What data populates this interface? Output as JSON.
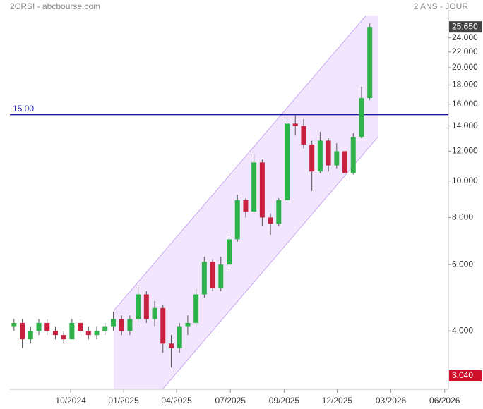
{
  "chart_data": {
    "type": "candlestick",
    "title": "2CRSI - abcbourse.com",
    "subtitle": "2 ANS - JOUR",
    "log_scale": true,
    "up_color": "#2db34a",
    "down_color": "#c8203f",
    "x": [
      1,
      3,
      5,
      7,
      9,
      11,
      13,
      15,
      17,
      19,
      21,
      23,
      25,
      27,
      29,
      31,
      33,
      35,
      37,
      39,
      41,
      43,
      45,
      47,
      49,
      51,
      53,
      55,
      57,
      59,
      61,
      63,
      65,
      67,
      69,
      71,
      73,
      75,
      77,
      79,
      81,
      83,
      85,
      87
    ],
    "open": [
      4.1,
      4.2,
      3.8,
      4.0,
      4.2,
      4.0,
      3.9,
      3.8,
      4.2,
      4.0,
      3.9,
      4.0,
      4.1,
      4.3,
      4.0,
      4.3,
      5.0,
      4.3,
      4.6,
      3.7,
      3.6,
      4.1,
      4.2,
      5.0,
      6.1,
      5.2,
      6.0,
      7.0,
      8.9,
      8.3,
      11.2,
      8.0,
      7.7,
      8.9,
      14.2,
      14.0,
      12.5,
      10.6,
      12.8,
      11.0,
      12.0,
      10.5,
      13.1,
      16.6
    ],
    "high": [
      4.3,
      4.3,
      4.1,
      4.3,
      4.3,
      4.1,
      4.0,
      4.3,
      4.3,
      4.1,
      4.1,
      4.2,
      4.5,
      4.4,
      4.4,
      5.3,
      5.1,
      4.8,
      4.7,
      3.9,
      4.2,
      4.4,
      5.2,
      6.3,
      6.2,
      6.3,
      7.2,
      9.2,
      9.0,
      11.8,
      11.4,
      8.2,
      9.0,
      14.8,
      15.0,
      14.6,
      12.8,
      13.5,
      13.0,
      12.6,
      12.2,
      13.4,
      17.8,
      26.2
    ],
    "low": [
      4.0,
      3.6,
      3.7,
      3.9,
      3.9,
      3.8,
      3.7,
      3.8,
      3.9,
      3.8,
      3.8,
      3.9,
      4.0,
      3.9,
      3.9,
      4.2,
      4.2,
      4.1,
      3.5,
      3.2,
      3.5,
      3.9,
      4.1,
      4.9,
      5.1,
      5.1,
      5.8,
      6.9,
      8.0,
      8.2,
      7.6,
      7.2,
      7.6,
      8.8,
      13.2,
      12.2,
      9.4,
      10.5,
      10.6,
      10.8,
      10.1,
      10.4,
      13.0,
      16.4
    ],
    "close": [
      4.2,
      3.8,
      4.0,
      4.2,
      4.0,
      3.9,
      3.8,
      4.2,
      4.0,
      3.9,
      4.0,
      4.1,
      4.3,
      4.0,
      4.3,
      5.0,
      4.3,
      4.6,
      3.7,
      3.6,
      4.1,
      4.2,
      5.0,
      6.1,
      5.2,
      6.0,
      7.0,
      8.9,
      8.3,
      11.2,
      8.0,
      7.7,
      8.9,
      14.2,
      14.0,
      12.5,
      10.6,
      12.8,
      11.0,
      12.0,
      10.5,
      13.1,
      16.6,
      25.65
    ],
    "xlim": [
      0,
      106
    ],
    "xticks": [
      {
        "value": 14.7,
        "label": "10/2024"
      },
      {
        "value": 27.5,
        "label": "01/2025"
      },
      {
        "value": 40.3,
        "label": "04/2025"
      },
      {
        "value": 53.3,
        "label": "07/2025"
      },
      {
        "value": 66.3,
        "label": "09/2025"
      },
      {
        "value": 79.1,
        "label": "12/2025"
      },
      {
        "value": 92.1,
        "label": "03/2026"
      },
      {
        "value": 105.1,
        "label": "06/2026"
      }
    ],
    "ylim": [
      2.8,
      27.5
    ],
    "yticks": [
      {
        "value": 4,
        "label": "4.000"
      },
      {
        "value": 6,
        "label": "6.000"
      },
      {
        "value": 8,
        "label": "8.000"
      },
      {
        "value": 10,
        "label": "10.000"
      },
      {
        "value": 12,
        "label": "12.000"
      },
      {
        "value": 14,
        "label": "14.000"
      },
      {
        "value": 16,
        "label": "16.000"
      },
      {
        "value": 18,
        "label": "18.000"
      },
      {
        "value": 20,
        "label": "20.000"
      },
      {
        "value": 22,
        "label": "22.000"
      },
      {
        "value": 24,
        "label": "24.000"
      }
    ],
    "hline": {
      "value": 15,
      "label": "15.00",
      "color": "#1a1aa6"
    },
    "last_price": {
      "value": 25.65,
      "label": "25.650"
    },
    "low_price": {
      "value": 3.04,
      "label": "3.040"
    },
    "channel": {
      "color": "#c9a6f0",
      "upper_x": [
        25.1,
        86.1
      ],
      "upper_y": [
        4.53,
        27.5
      ],
      "lower_x": [
        36.9,
        89.1
      ],
      "lower_y": [
        2.8,
        13.14
      ]
    }
  }
}
